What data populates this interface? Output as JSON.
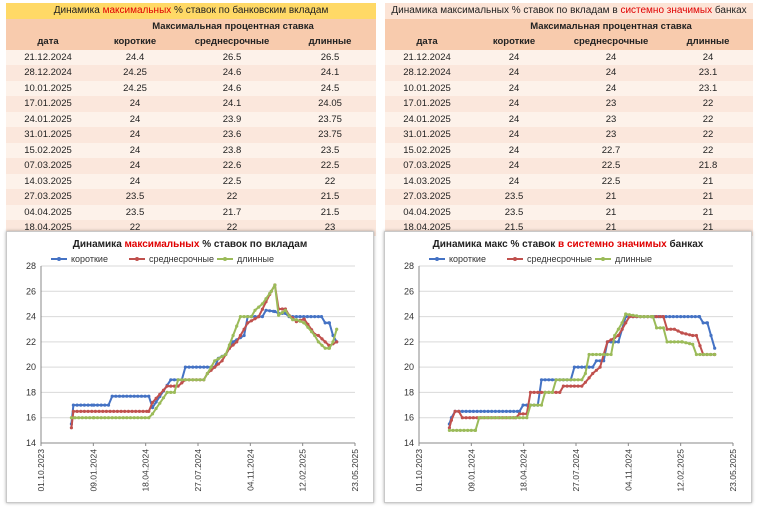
{
  "colors": {
    "short": "#4472c4",
    "mid": "#c0504d",
    "long": "#9bbb59",
    "accent": "#e00000"
  },
  "left_table": {
    "title_pre": "Динамика ",
    "title_red": "максимальных",
    "title_post": " % ставок по банковским вкладам",
    "header_group": "Максимальная процентная ставка",
    "columns": [
      "дата",
      "короткие",
      "среднесрочные",
      "длинные"
    ],
    "rows": [
      [
        "21.12.2024",
        "24.4",
        "26.5",
        "26.5"
      ],
      [
        "28.12.2024",
        "24.25",
        "24.6",
        "24.1"
      ],
      [
        "10.01.2025",
        "24.25",
        "24.6",
        "24.5"
      ],
      [
        "17.01.2025",
        "24",
        "24.1",
        "24.05"
      ],
      [
        "24.01.2025",
        "24",
        "23.9",
        "23.75"
      ],
      [
        "31.01.2025",
        "24",
        "23.6",
        "23.75"
      ],
      [
        "15.02.2025",
        "24",
        "23.8",
        "23.5"
      ],
      [
        "07.03.2025",
        "24",
        "22.6",
        "22.5"
      ],
      [
        "14.03.2025",
        "24",
        "22.5",
        "22"
      ],
      [
        "27.03.2025",
        "23.5",
        "22",
        "21.5"
      ],
      [
        "04.04.2025",
        "23.5",
        "21.7",
        "21.5"
      ],
      [
        "18.04.2025",
        "22",
        "22",
        "23"
      ]
    ]
  },
  "right_table": {
    "title_pre": "Динамика максимальных % ставок по вкладам в ",
    "title_red": "системно значимых",
    "title_post": " банках",
    "header_group": "Максимальная процентная ставка",
    "columns": [
      "дата",
      "короткие",
      "среднесрочные",
      "длинные"
    ],
    "rows": [
      [
        "21.12.2024",
        "24",
        "24",
        "24"
      ],
      [
        "28.12.2024",
        "24",
        "24",
        "23.1"
      ],
      [
        "10.01.2025",
        "24",
        "24",
        "23.1"
      ],
      [
        "17.01.2025",
        "24",
        "23",
        "22"
      ],
      [
        "24.01.2025",
        "24",
        "23",
        "22"
      ],
      [
        "31.01.2025",
        "24",
        "23",
        "22"
      ],
      [
        "15.02.2025",
        "24",
        "22.7",
        "22"
      ],
      [
        "07.03.2025",
        "24",
        "22.5",
        "21.8"
      ],
      [
        "14.03.2025",
        "24",
        "22.5",
        "21"
      ],
      [
        "27.03.2025",
        "23.5",
        "21",
        "21"
      ],
      [
        "04.04.2025",
        "23.5",
        "21",
        "21"
      ],
      [
        "18.04.2025",
        "21.5",
        "21",
        "21"
      ]
    ]
  },
  "chart_data": [
    {
      "type": "line",
      "title_pre": "Динамика ",
      "title_red": "максимальных",
      "title_post": " % ставок по вкладам",
      "ylim": [
        14,
        28
      ],
      "yticks": [
        "14",
        "16",
        "18",
        "20",
        "22",
        "24",
        "26",
        "28"
      ],
      "xlim": [
        "2023-10-01",
        "2025-05-23"
      ],
      "xticks": [
        "01.10.2023",
        "09.01.2024",
        "18.04.2024",
        "27.07.2024",
        "04.11.2024",
        "12.02.2025",
        "23.05.2025"
      ],
      "grid": "horizontal",
      "legend": "top",
      "series": [
        {
          "name": "короткие",
          "color": "#4472c4",
          "points": [
            [
              "2023-11-28",
              15.5
            ],
            [
              "2023-12-02",
              17
            ],
            [
              "2024-01-10",
              17
            ],
            [
              "2024-02-07",
              17
            ],
            [
              "2024-02-14",
              17.7
            ],
            [
              "2024-04-24",
              17.7
            ],
            [
              "2024-05-01",
              16.8
            ],
            [
              "2024-06-05",
              19
            ],
            [
              "2024-06-26",
              19
            ],
            [
              "2024-07-03",
              20
            ],
            [
              "2024-08-28",
              20
            ],
            [
              "2024-09-04",
              20.7
            ],
            [
              "2024-09-18",
              21
            ],
            [
              "2024-10-02",
              22
            ],
            [
              "2024-10-23",
              22.5
            ],
            [
              "2024-10-30",
              24
            ],
            [
              "2024-11-27",
              24
            ],
            [
              "2024-12-04",
              24.5
            ],
            [
              "2024-12-21",
              24.4
            ],
            [
              "2024-12-28",
              24.25
            ],
            [
              "2025-01-10",
              24.25
            ],
            [
              "2025-01-17",
              24
            ],
            [
              "2025-03-20",
              24
            ],
            [
              "2025-03-27",
              23.5
            ],
            [
              "2025-04-04",
              23.5
            ],
            [
              "2025-04-11",
              22.5
            ],
            [
              "2025-04-18",
              22
            ]
          ]
        },
        {
          "name": "среднесрочные",
          "color": "#c0504d",
          "points": [
            [
              "2023-11-28",
              15.2
            ],
            [
              "2023-12-02",
              16.5
            ],
            [
              "2023-12-09",
              16.5
            ],
            [
              "2024-01-20",
              16.5
            ],
            [
              "2024-04-24",
              16.5
            ],
            [
              "2024-05-01",
              17.2
            ],
            [
              "2024-05-29",
              18.5
            ],
            [
              "2024-06-19",
              18.5
            ],
            [
              "2024-07-03",
              19
            ],
            [
              "2024-08-07",
              19
            ],
            [
              "2024-08-14",
              19.5
            ],
            [
              "2024-08-28",
              20
            ],
            [
              "2024-09-11",
              20.5
            ],
            [
              "2024-09-25",
              21.5
            ],
            [
              "2024-10-09",
              22
            ],
            [
              "2024-10-30",
              23.5
            ],
            [
              "2024-11-20",
              24
            ],
            [
              "2024-12-14",
              26
            ],
            [
              "2024-12-21",
              26.5
            ],
            [
              "2024-12-28",
              24.6
            ],
            [
              "2025-01-10",
              24.6
            ],
            [
              "2025-01-17",
              24.1
            ],
            [
              "2025-01-24",
              23.9
            ],
            [
              "2025-01-31",
              23.6
            ],
            [
              "2025-02-15",
              23.8
            ],
            [
              "2025-03-07",
              22.6
            ],
            [
              "2025-03-14",
              22.5
            ],
            [
              "2025-03-27",
              22
            ],
            [
              "2025-04-04",
              21.7
            ],
            [
              "2025-04-18",
              22
            ]
          ]
        },
        {
          "name": "длинные",
          "color": "#9bbb59",
          "points": [
            [
              "2023-11-28",
              16
            ],
            [
              "2024-01-10",
              16
            ],
            [
              "2024-04-24",
              16
            ],
            [
              "2024-05-01",
              16.3
            ],
            [
              "2024-05-29",
              18
            ],
            [
              "2024-06-12",
              18
            ],
            [
              "2024-06-19",
              19
            ],
            [
              "2024-08-07",
              19
            ],
            [
              "2024-08-14",
              19.5
            ],
            [
              "2024-08-28",
              20.5
            ],
            [
              "2024-09-18",
              21
            ],
            [
              "2024-10-02",
              22.5
            ],
            [
              "2024-10-16",
              24
            ],
            [
              "2024-11-06",
              24
            ],
            [
              "2024-11-13",
              24.5
            ],
            [
              "2024-11-27",
              25
            ],
            [
              "2024-12-14",
              26
            ],
            [
              "2024-12-21",
              26.5
            ],
            [
              "2024-12-28",
              24.1
            ],
            [
              "2025-01-10",
              24.5
            ],
            [
              "2025-01-17",
              24.05
            ],
            [
              "2025-01-24",
              23.75
            ],
            [
              "2025-01-31",
              23.75
            ],
            [
              "2025-02-15",
              23.5
            ],
            [
              "2025-03-07",
              22.5
            ],
            [
              "2025-03-14",
              22
            ],
            [
              "2025-03-27",
              21.5
            ],
            [
              "2025-04-04",
              21.5
            ],
            [
              "2025-04-11",
              22
            ],
            [
              "2025-04-18",
              23
            ]
          ]
        }
      ]
    },
    {
      "type": "line",
      "title_pre": "Динамика макс % ставок ",
      "title_red": "в системно значимых",
      "title_post": " банках",
      "ylim": [
        14,
        28
      ],
      "yticks": [
        "14",
        "16",
        "18",
        "20",
        "22",
        "24",
        "26",
        "28"
      ],
      "xlim": [
        "2023-10-01",
        "2025-05-23"
      ],
      "xticks": [
        "01.10.2023",
        "09.01.2024",
        "18.04.2024",
        "27.07.2024",
        "04.11.2024",
        "12.02.2025",
        "23.05.2025"
      ],
      "grid": "horizontal",
      "legend": "top",
      "series": [
        {
          "name": "короткие",
          "color": "#4472c4",
          "points": [
            [
              "2023-11-28",
              15.5
            ],
            [
              "2023-12-02",
              16
            ],
            [
              "2023-12-09",
              16.5
            ],
            [
              "2024-04-10",
              16.5
            ],
            [
              "2024-04-17",
              17
            ],
            [
              "2024-05-15",
              17
            ],
            [
              "2024-05-22",
              19
            ],
            [
              "2024-07-17",
              19
            ],
            [
              "2024-07-24",
              20
            ],
            [
              "2024-08-28",
              20
            ],
            [
              "2024-09-04",
              20.5
            ],
            [
              "2024-09-18",
              20.5
            ],
            [
              "2024-09-25",
              22
            ],
            [
              "2024-10-16",
              22
            ],
            [
              "2024-10-23",
              23
            ],
            [
              "2024-10-30",
              24
            ],
            [
              "2025-03-20",
              24
            ],
            [
              "2025-03-27",
              23.5
            ],
            [
              "2025-04-04",
              23.5
            ],
            [
              "2025-04-18",
              21.5
            ]
          ]
        },
        {
          "name": "среднесрочные",
          "color": "#c0504d",
          "points": [
            [
              "2023-11-28",
              15.2
            ],
            [
              "2023-12-02",
              15.8
            ],
            [
              "2023-12-09",
              16.5
            ],
            [
              "2023-12-16",
              16.5
            ],
            [
              "2023-12-23",
              16
            ],
            [
              "2024-04-03",
              16
            ],
            [
              "2024-04-10",
              16.3
            ],
            [
              "2024-04-24",
              16.3
            ],
            [
              "2024-05-01",
              18
            ],
            [
              "2024-06-26",
              18
            ],
            [
              "2024-07-03",
              18.5
            ],
            [
              "2024-08-07",
              18.5
            ],
            [
              "2024-08-14",
              18.8
            ],
            [
              "2024-08-28",
              19.5
            ],
            [
              "2024-09-11",
              20
            ],
            [
              "2024-09-25",
              22
            ],
            [
              "2024-10-16",
              22.5
            ],
            [
              "2024-10-23",
              23
            ],
            [
              "2024-10-30",
              23.5
            ],
            [
              "2024-11-06",
              24
            ],
            [
              "2024-12-21",
              24
            ],
            [
              "2025-01-10",
              24
            ],
            [
              "2025-01-17",
              23
            ],
            [
              "2025-01-31",
              23
            ],
            [
              "2025-02-15",
              22.7
            ],
            [
              "2025-03-07",
              22.5
            ],
            [
              "2025-03-14",
              22.5
            ],
            [
              "2025-03-27",
              21
            ],
            [
              "2025-04-18",
              21
            ]
          ]
        },
        {
          "name": "длинные",
          "color": "#9bbb59",
          "points": [
            [
              "2023-11-28",
              15
            ],
            [
              "2024-01-17",
              15
            ],
            [
              "2024-01-24",
              16
            ],
            [
              "2024-04-24",
              16
            ],
            [
              "2024-05-01",
              17
            ],
            [
              "2024-05-22",
              17
            ],
            [
              "2024-05-29",
              18
            ],
            [
              "2024-06-12",
              18
            ],
            [
              "2024-06-19",
              19
            ],
            [
              "2024-08-07",
              19
            ],
            [
              "2024-08-14",
              19.5
            ],
            [
              "2024-08-21",
              21
            ],
            [
              "2024-09-11",
              21
            ],
            [
              "2024-09-18",
              21
            ],
            [
              "2024-10-02",
              21
            ],
            [
              "2024-10-09",
              22.5
            ],
            [
              "2024-10-23",
              23.5
            ],
            [
              "2024-10-30",
              24.2
            ],
            [
              "2024-11-27",
              24
            ],
            [
              "2024-12-21",
              24
            ],
            [
              "2024-12-28",
              23.1
            ],
            [
              "2025-01-10",
              23.1
            ],
            [
              "2025-01-17",
              22
            ],
            [
              "2025-02-15",
              22
            ],
            [
              "2025-03-07",
              21.8
            ],
            [
              "2025-03-14",
              21
            ],
            [
              "2025-04-18",
              21
            ]
          ]
        }
      ]
    }
  ]
}
